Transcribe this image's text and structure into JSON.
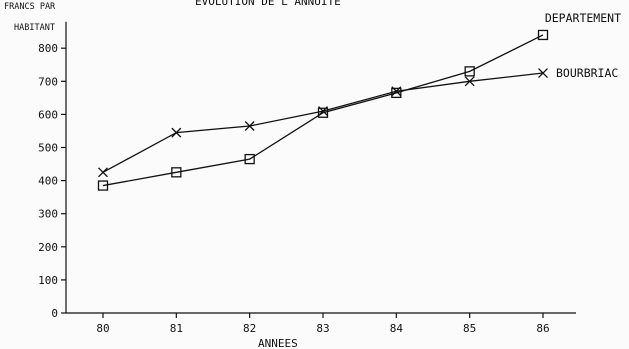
{
  "chart_data": {
    "type": "line",
    "title": "EVOLUTION DE L'ANNUITE",
    "ylabel_lines": [
      "FRANCS PAR",
      "HABITANT"
    ],
    "xlabel": "ANNEES",
    "categories": [
      "80",
      "81",
      "82",
      "83",
      "84",
      "85",
      "86"
    ],
    "yticks": [
      0,
      100,
      200,
      300,
      400,
      500,
      600,
      700,
      800
    ],
    "ylim": [
      0,
      880
    ],
    "grid": false,
    "legend": "direct labels at line ends",
    "series": [
      {
        "name": "DEPARTEMENT",
        "marker": "square",
        "values": [
          385,
          425,
          465,
          605,
          665,
          730,
          840
        ]
      },
      {
        "name": "BOURBRIAC",
        "marker": "cross",
        "values": [
          425,
          545,
          565,
          610,
          670,
          700,
          725
        ]
      }
    ]
  }
}
